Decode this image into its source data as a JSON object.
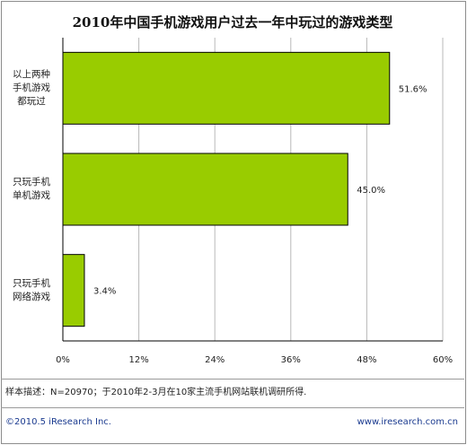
{
  "chart_data": {
    "type": "bar",
    "orientation": "horizontal",
    "title": "2010年中国手机游戏用户过去一年中玩过的游戏类型",
    "categories": [
      [
        "以上两种",
        "手机游戏",
        "都玩过"
      ],
      [
        "只玩手机",
        "单机游戏"
      ],
      [
        "只玩手机",
        "网络游戏"
      ]
    ],
    "values": [
      51.6,
      45.0,
      3.4
    ],
    "value_labels": [
      "51.6%",
      "45.0%",
      "3.4%"
    ],
    "xlim": [
      0,
      60
    ],
    "x_ticks": [
      "0%",
      "12%",
      "24%",
      "36%",
      "48%",
      "60%"
    ],
    "grid": true,
    "bar_color": "#99cc00",
    "bar_edge_color": "#000000"
  },
  "footnote": "样本描述：N=20970；于2010年2-3月在10家主流手机网站联机调研所得.",
  "copyright": "©2010.5 iResearch Inc.",
  "website": "www.iresearch.com.cn",
  "colors": {
    "link": "#1a3a8f",
    "grid": "#b8b8b8"
  }
}
